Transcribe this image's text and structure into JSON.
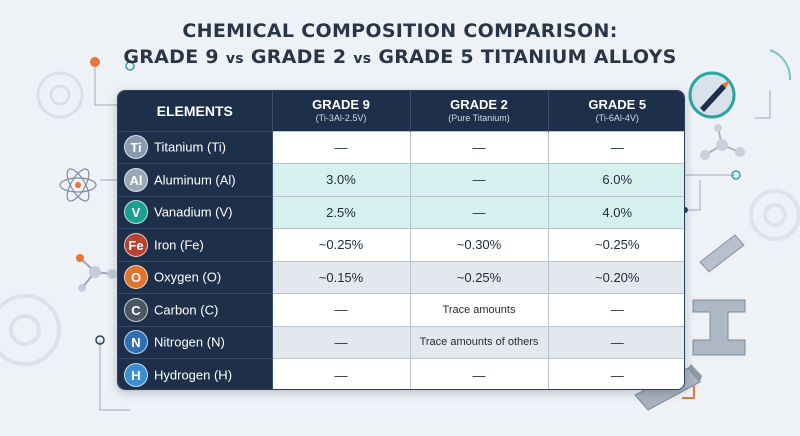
{
  "title": {
    "line1": "CHEMICAL COMPOSITION COMPARISON:",
    "line2_a": "GRADE 9 ",
    "line2_vs1": "vs",
    "line2_b": " GRADE 2 ",
    "line2_vs2": "vs",
    "line2_c": " GRADE 5 TITANIUM ALLOYS"
  },
  "headers": {
    "elements": "ELEMENTS",
    "grades": [
      {
        "name": "GRADE 9",
        "sub": "(Ti-3Al-2.5V)"
      },
      {
        "name": "GRADE 2",
        "sub": "(Pure Titanium)"
      },
      {
        "name": "GRADE 5",
        "sub": "(Ti-6Al-4V)"
      }
    ]
  },
  "rows": [
    {
      "symbol": "Ti",
      "name": "Titanium (Ti)",
      "badge_color": "#8a9bb0",
      "g9": "—",
      "g2": "—",
      "g5": "—"
    },
    {
      "symbol": "Al",
      "name": "Aluminum (Al)",
      "badge_color": "#9aa7b6",
      "g9": "3.0%",
      "g2": "—",
      "g5": "6.0%"
    },
    {
      "symbol": "V",
      "name": "Vanadium (V)",
      "badge_color": "#1aa08e",
      "g9": "2.5%",
      "g2": "—",
      "g5": "4.0%"
    },
    {
      "symbol": "Fe",
      "name": "Iron (Fe)",
      "badge_color": "#b5432f",
      "g9": "~0.25%",
      "g2": "~0.30%",
      "g5": "~0.25%"
    },
    {
      "symbol": "O",
      "name": "Oxygen (O)",
      "badge_color": "#e0752d",
      "g9": "~0.15%",
      "g2": "~0.25%",
      "g5": "~0.20%"
    },
    {
      "symbol": "C",
      "name": "Carbon (C)",
      "badge_color": "#4b5563",
      "g9": "—",
      "g2": "Trace amounts",
      "g5": "—"
    },
    {
      "symbol": "N",
      "name": "Nitrogen (N)",
      "badge_color": "#2f6fb5",
      "g9": "—",
      "g2": "Trace amounts of others",
      "g5": "—"
    },
    {
      "symbol": "H",
      "name": "Hydrogen (H)",
      "badge_color": "#3a8fd0",
      "g9": "—",
      "g2": "—",
      "g5": "—"
    }
  ]
}
